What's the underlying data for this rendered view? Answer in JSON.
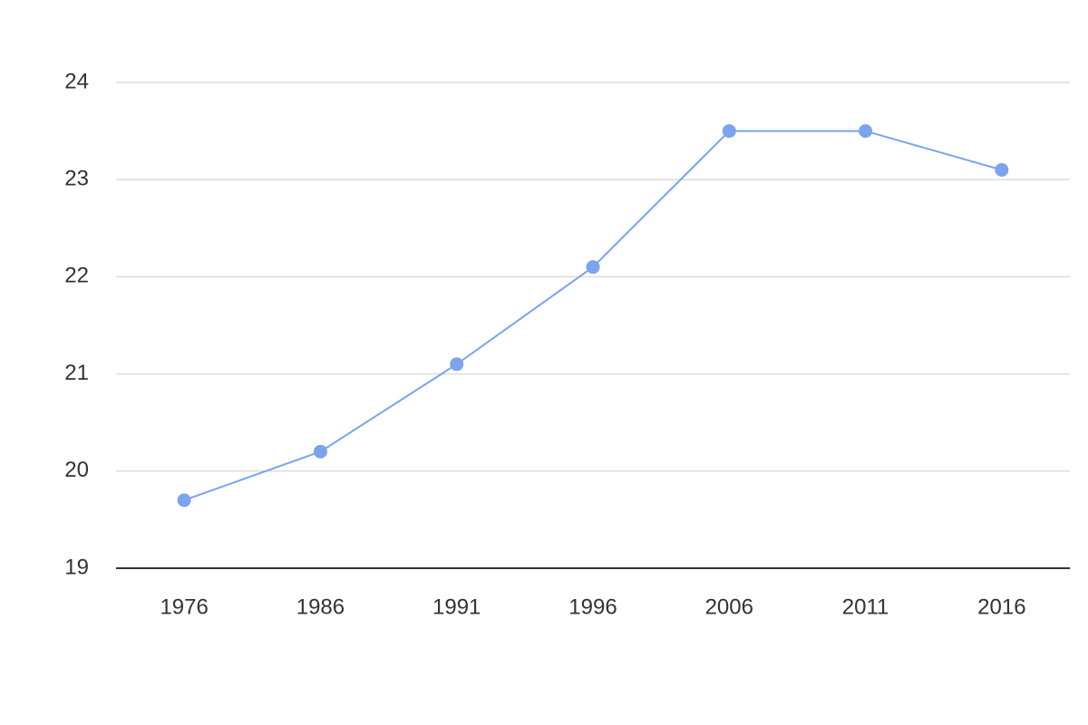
{
  "chart_data": {
    "type": "line",
    "categories": [
      "1976",
      "1986",
      "1991",
      "1996",
      "2006",
      "2011",
      "2016"
    ],
    "values": [
      19.7,
      20.2,
      21.1,
      22.1,
      23.5,
      23.5,
      23.1
    ],
    "color": "#7ba3ee",
    "ylim": [
      19,
      24
    ],
    "yticks": [
      19,
      20,
      21,
      22,
      23,
      24
    ],
    "grid": true
  }
}
